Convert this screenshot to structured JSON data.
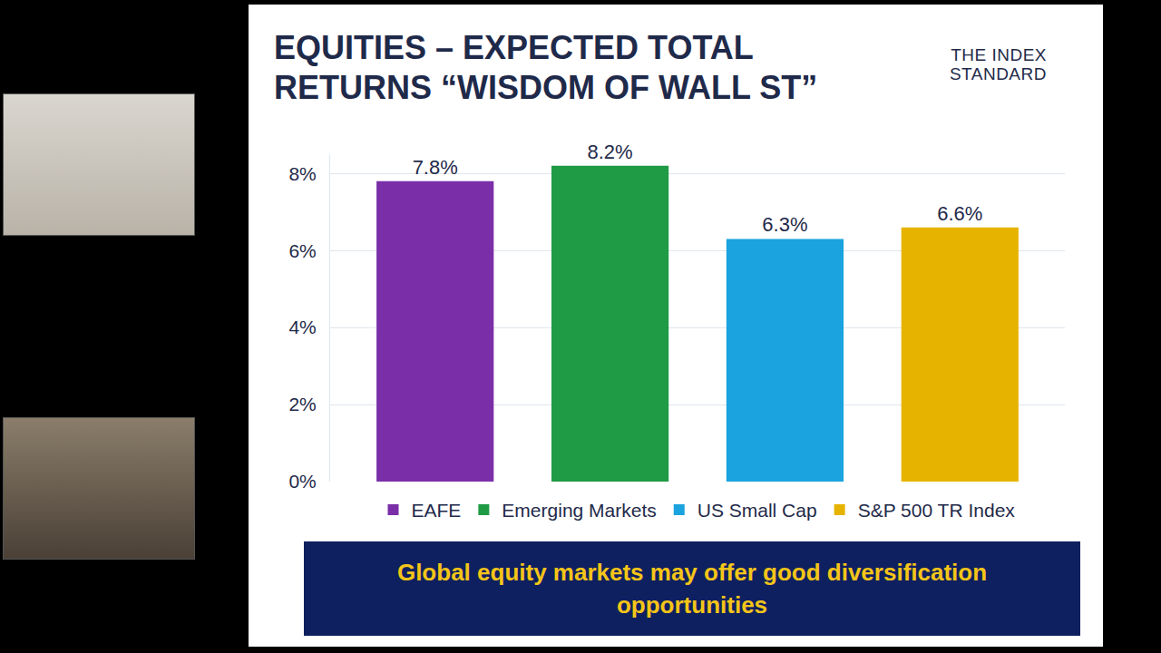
{
  "chart_data": {
    "type": "bar",
    "title": "EQUITIES – EXPECTED TOTAL RETURNS “WISDOM OF WALL ST”",
    "annotations": [
      "THE INDEX STANDARD",
      "Global equity markets may offer good diversification opportunities"
    ],
    "categories": [
      "EAFE",
      "Emerging Markets",
      "US Small Cap",
      "S&P 500 TR Index"
    ],
    "values": [
      7.8,
      8.2,
      6.3,
      6.6
    ],
    "value_labels": [
      "7.8%",
      "8.2%",
      "6.3%",
      "6.6%"
    ],
    "colors": [
      "#7a2fa8",
      "#1f9a45",
      "#1aa3de",
      "#e6b400"
    ],
    "ylim": [
      0,
      8.5
    ],
    "yticks": [
      {
        "value": 0,
        "label": "0%"
      },
      {
        "value": 2,
        "label": "2%"
      },
      {
        "value": 4,
        "label": "4%"
      },
      {
        "value": 6,
        "label": "6%"
      },
      {
        "value": 8,
        "label": "8%"
      }
    ],
    "grid": true,
    "legend": "bottom",
    "data_labels": true,
    "tick_labels": "y"
  }
}
